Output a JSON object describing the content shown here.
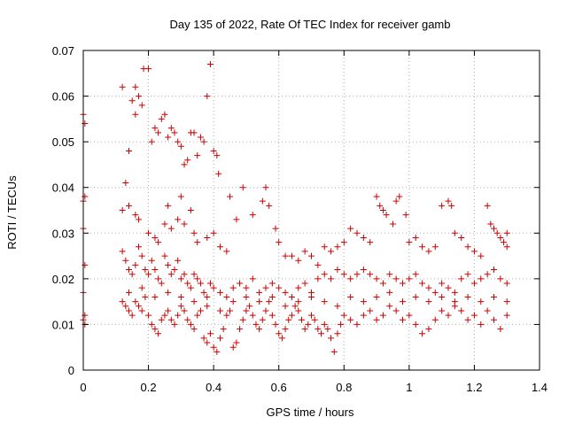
{
  "chart_data": {
    "type": "scatter",
    "title": "Day 135 of 2022, Rate Of TEC Index for receiver gamb",
    "xlabel": "GPS time / hours",
    "ylabel": "ROTI / TECUs",
    "xlim": [
      0,
      1.4
    ],
    "ylim": [
      0,
      0.07
    ],
    "x_ticks": [
      0,
      0.2,
      0.4,
      0.6,
      0.8,
      1,
      1.2,
      1.4
    ],
    "x_tick_labels": [
      "0",
      "0.2",
      "0.4",
      "0.6",
      "0.8",
      "1",
      "1.2",
      "1.4"
    ],
    "y_ticks": [
      0,
      0.01,
      0.02,
      0.03,
      0.04,
      0.05,
      0.06,
      0.07
    ],
    "y_tick_labels": [
      "0",
      "0.01",
      "0.02",
      "0.03",
      "0.04",
      "0.05",
      "0.06",
      "0.07"
    ],
    "grid": true,
    "marker": "+",
    "color": "#cc0000",
    "series": [
      {
        "name": "gamb",
        "points": [
          [
            0.0,
            0.056
          ],
          [
            0.005,
            0.054
          ],
          [
            0.0,
            0.037
          ],
          [
            0.005,
            0.038
          ],
          [
            0.0,
            0.031
          ],
          [
            0.005,
            0.023
          ],
          [
            0.0,
            0.017
          ],
          [
            0.005,
            0.012
          ],
          [
            0.0,
            0.011
          ],
          [
            0.005,
            0.01
          ],
          [
            0.12,
            0.062
          ],
          [
            0.13,
            0.041
          ],
          [
            0.14,
            0.048
          ],
          [
            0.15,
            0.059
          ],
          [
            0.16,
            0.056
          ],
          [
            0.16,
            0.062
          ],
          [
            0.17,
            0.06
          ],
          [
            0.18,
            0.058
          ],
          [
            0.185,
            0.066
          ],
          [
            0.2,
            0.066
          ],
          [
            0.21,
            0.05
          ],
          [
            0.22,
            0.053
          ],
          [
            0.23,
            0.052
          ],
          [
            0.24,
            0.055
          ],
          [
            0.25,
            0.056
          ],
          [
            0.26,
            0.051
          ],
          [
            0.27,
            0.053
          ],
          [
            0.28,
            0.052
          ],
          [
            0.29,
            0.05
          ],
          [
            0.3,
            0.049
          ],
          [
            0.31,
            0.045
          ],
          [
            0.32,
            0.046
          ],
          [
            0.33,
            0.052
          ],
          [
            0.34,
            0.052
          ],
          [
            0.35,
            0.047
          ],
          [
            0.36,
            0.051
          ],
          [
            0.37,
            0.05
          ],
          [
            0.38,
            0.06
          ],
          [
            0.39,
            0.067
          ],
          [
            0.4,
            0.048
          ],
          [
            0.41,
            0.047
          ],
          [
            0.415,
            0.043
          ],
          [
            0.3,
            0.038
          ],
          [
            0.26,
            0.036
          ],
          [
            0.33,
            0.035
          ],
          [
            0.12,
            0.035
          ],
          [
            0.14,
            0.036
          ],
          [
            0.16,
            0.034
          ],
          [
            0.17,
            0.033
          ],
          [
            0.2,
            0.03
          ],
          [
            0.22,
            0.029
          ],
          [
            0.23,
            0.028
          ],
          [
            0.25,
            0.032
          ],
          [
            0.27,
            0.031
          ],
          [
            0.29,
            0.033
          ],
          [
            0.31,
            0.032
          ],
          [
            0.34,
            0.03
          ],
          [
            0.35,
            0.028
          ],
          [
            0.38,
            0.029
          ],
          [
            0.4,
            0.03
          ],
          [
            0.42,
            0.027
          ],
          [
            0.44,
            0.026
          ],
          [
            0.45,
            0.038
          ],
          [
            0.47,
            0.033
          ],
          [
            0.49,
            0.04
          ],
          [
            0.52,
            0.034
          ],
          [
            0.55,
            0.037
          ],
          [
            0.56,
            0.04
          ],
          [
            0.57,
            0.036
          ],
          [
            0.59,
            0.031
          ],
          [
            0.6,
            0.028
          ],
          [
            0.62,
            0.025
          ],
          [
            0.64,
            0.025
          ],
          [
            0.66,
            0.024
          ],
          [
            0.68,
            0.026
          ],
          [
            0.7,
            0.025
          ],
          [
            0.72,
            0.023
          ],
          [
            0.74,
            0.027
          ],
          [
            0.76,
            0.026
          ],
          [
            0.78,
            0.027
          ],
          [
            0.8,
            0.028
          ],
          [
            0.82,
            0.031
          ],
          [
            0.84,
            0.03
          ],
          [
            0.86,
            0.029
          ],
          [
            0.88,
            0.028
          ],
          [
            0.9,
            0.038
          ],
          [
            0.91,
            0.036
          ],
          [
            0.92,
            0.035
          ],
          [
            0.93,
            0.034
          ],
          [
            0.95,
            0.032
          ],
          [
            0.96,
            0.037
          ],
          [
            0.97,
            0.038
          ],
          [
            0.99,
            0.034
          ],
          [
            1.0,
            0.028
          ],
          [
            1.02,
            0.029
          ],
          [
            1.04,
            0.027
          ],
          [
            1.06,
            0.026
          ],
          [
            1.08,
            0.027
          ],
          [
            1.1,
            0.036
          ],
          [
            1.12,
            0.037
          ],
          [
            1.13,
            0.036
          ],
          [
            1.14,
            0.03
          ],
          [
            1.16,
            0.029
          ],
          [
            1.18,
            0.027
          ],
          [
            1.2,
            0.026
          ],
          [
            1.22,
            0.025
          ],
          [
            1.24,
            0.036
          ],
          [
            1.25,
            0.032
          ],
          [
            1.26,
            0.031
          ],
          [
            1.27,
            0.03
          ],
          [
            1.28,
            0.029
          ],
          [
            1.29,
            0.028
          ],
          [
            1.3,
            0.027
          ],
          [
            1.3,
            0.03
          ],
          [
            0.12,
            0.026
          ],
          [
            0.13,
            0.024
          ],
          [
            0.14,
            0.022
          ],
          [
            0.15,
            0.021
          ],
          [
            0.16,
            0.023
          ],
          [
            0.17,
            0.027
          ],
          [
            0.18,
            0.025
          ],
          [
            0.19,
            0.022
          ],
          [
            0.2,
            0.021
          ],
          [
            0.21,
            0.024
          ],
          [
            0.22,
            0.022
          ],
          [
            0.23,
            0.02
          ],
          [
            0.24,
            0.019
          ],
          [
            0.25,
            0.025
          ],
          [
            0.26,
            0.023
          ],
          [
            0.27,
            0.021
          ],
          [
            0.28,
            0.022
          ],
          [
            0.29,
            0.024
          ],
          [
            0.3,
            0.02
          ],
          [
            0.31,
            0.021
          ],
          [
            0.32,
            0.019
          ],
          [
            0.33,
            0.018
          ],
          [
            0.34,
            0.021
          ],
          [
            0.35,
            0.02
          ],
          [
            0.36,
            0.019
          ],
          [
            0.37,
            0.017
          ],
          [
            0.38,
            0.016
          ],
          [
            0.39,
            0.019
          ],
          [
            0.4,
            0.018
          ],
          [
            0.42,
            0.017
          ],
          [
            0.44,
            0.016
          ],
          [
            0.46,
            0.018
          ],
          [
            0.48,
            0.019
          ],
          [
            0.5,
            0.018
          ],
          [
            0.52,
            0.02
          ],
          [
            0.54,
            0.017
          ],
          [
            0.56,
            0.018
          ],
          [
            0.58,
            0.019
          ],
          [
            0.6,
            0.018
          ],
          [
            0.62,
            0.017
          ],
          [
            0.64,
            0.016
          ],
          [
            0.66,
            0.018
          ],
          [
            0.68,
            0.019
          ],
          [
            0.7,
            0.017
          ],
          [
            0.72,
            0.02
          ],
          [
            0.74,
            0.021
          ],
          [
            0.76,
            0.02
          ],
          [
            0.78,
            0.022
          ],
          [
            0.8,
            0.021
          ],
          [
            0.82,
            0.02
          ],
          [
            0.84,
            0.021
          ],
          [
            0.86,
            0.022
          ],
          [
            0.88,
            0.021
          ],
          [
            0.9,
            0.02
          ],
          [
            0.92,
            0.019
          ],
          [
            0.94,
            0.021
          ],
          [
            0.96,
            0.02
          ],
          [
            0.98,
            0.019
          ],
          [
            1.0,
            0.02
          ],
          [
            1.02,
            0.021
          ],
          [
            1.04,
            0.019
          ],
          [
            1.06,
            0.018
          ],
          [
            1.08,
            0.017
          ],
          [
            1.1,
            0.019
          ],
          [
            1.12,
            0.018
          ],
          [
            1.14,
            0.017
          ],
          [
            1.16,
            0.02
          ],
          [
            1.18,
            0.021
          ],
          [
            1.2,
            0.019
          ],
          [
            1.22,
            0.02
          ],
          [
            1.24,
            0.021
          ],
          [
            1.26,
            0.022
          ],
          [
            1.28,
            0.02
          ],
          [
            1.3,
            0.019
          ],
          [
            0.12,
            0.015
          ],
          [
            0.13,
            0.014
          ],
          [
            0.14,
            0.013
          ],
          [
            0.15,
            0.012
          ],
          [
            0.16,
            0.015
          ],
          [
            0.17,
            0.014
          ],
          [
            0.18,
            0.013
          ],
          [
            0.19,
            0.016
          ],
          [
            0.2,
            0.012
          ],
          [
            0.21,
            0.01
          ],
          [
            0.22,
            0.009
          ],
          [
            0.23,
            0.008
          ],
          [
            0.24,
            0.011
          ],
          [
            0.25,
            0.012
          ],
          [
            0.26,
            0.013
          ],
          [
            0.27,
            0.011
          ],
          [
            0.28,
            0.01
          ],
          [
            0.29,
            0.012
          ],
          [
            0.3,
            0.014
          ],
          [
            0.31,
            0.013
          ],
          [
            0.32,
            0.011
          ],
          [
            0.33,
            0.01
          ],
          [
            0.34,
            0.009
          ],
          [
            0.35,
            0.012
          ],
          [
            0.36,
            0.013
          ],
          [
            0.37,
            0.007
          ],
          [
            0.38,
            0.006
          ],
          [
            0.39,
            0.008
          ],
          [
            0.4,
            0.005
          ],
          [
            0.41,
            0.004
          ],
          [
            0.42,
            0.007
          ],
          [
            0.43,
            0.009
          ],
          [
            0.44,
            0.012
          ],
          [
            0.45,
            0.013
          ],
          [
            0.46,
            0.005
          ],
          [
            0.47,
            0.006
          ],
          [
            0.48,
            0.009
          ],
          [
            0.49,
            0.011
          ],
          [
            0.5,
            0.013
          ],
          [
            0.51,
            0.014
          ],
          [
            0.52,
            0.012
          ],
          [
            0.53,
            0.01
          ],
          [
            0.54,
            0.009
          ],
          [
            0.55,
            0.011
          ],
          [
            0.56,
            0.013
          ],
          [
            0.57,
            0.015
          ],
          [
            0.58,
            0.012
          ],
          [
            0.59,
            0.01
          ],
          [
            0.6,
            0.008
          ],
          [
            0.61,
            0.007
          ],
          [
            0.62,
            0.009
          ],
          [
            0.63,
            0.011
          ],
          [
            0.64,
            0.012
          ],
          [
            0.65,
            0.014
          ],
          [
            0.66,
            0.013
          ],
          [
            0.67,
            0.011
          ],
          [
            0.68,
            0.009
          ],
          [
            0.69,
            0.01
          ],
          [
            0.7,
            0.012
          ],
          [
            0.71,
            0.011
          ],
          [
            0.72,
            0.009
          ],
          [
            0.73,
            0.008
          ],
          [
            0.74,
            0.01
          ],
          [
            0.75,
            0.009
          ],
          [
            0.76,
            0.007
          ],
          [
            0.77,
            0.004
          ],
          [
            0.78,
            0.008
          ],
          [
            0.79,
            0.01
          ],
          [
            0.8,
            0.012
          ],
          [
            0.82,
            0.011
          ],
          [
            0.84,
            0.01
          ],
          [
            0.86,
            0.012
          ],
          [
            0.88,
            0.013
          ],
          [
            0.9,
            0.011
          ],
          [
            0.92,
            0.012
          ],
          [
            0.94,
            0.014
          ],
          [
            0.96,
            0.013
          ],
          [
            0.98,
            0.011
          ],
          [
            1.0,
            0.012
          ],
          [
            1.02,
            0.01
          ],
          [
            1.04,
            0.008
          ],
          [
            1.06,
            0.009
          ],
          [
            1.08,
            0.011
          ],
          [
            1.1,
            0.013
          ],
          [
            1.12,
            0.012
          ],
          [
            1.14,
            0.014
          ],
          [
            1.16,
            0.013
          ],
          [
            1.18,
            0.011
          ],
          [
            1.2,
            0.012
          ],
          [
            1.22,
            0.01
          ],
          [
            1.24,
            0.013
          ],
          [
            1.26,
            0.011
          ],
          [
            1.28,
            0.009
          ],
          [
            1.3,
            0.012
          ],
          [
            0.14,
            0.017
          ],
          [
            0.18,
            0.018
          ],
          [
            0.22,
            0.016
          ],
          [
            0.26,
            0.017
          ],
          [
            0.3,
            0.016
          ],
          [
            0.34,
            0.015
          ],
          [
            0.38,
            0.014
          ],
          [
            0.42,
            0.013
          ],
          [
            0.46,
            0.015
          ],
          [
            0.5,
            0.016
          ],
          [
            0.54,
            0.015
          ],
          [
            0.58,
            0.016
          ],
          [
            0.62,
            0.014
          ],
          [
            0.66,
            0.015
          ],
          [
            0.7,
            0.016
          ],
          [
            0.74,
            0.015
          ],
          [
            0.78,
            0.014
          ],
          [
            0.82,
            0.016
          ],
          [
            0.86,
            0.015
          ],
          [
            0.9,
            0.016
          ],
          [
            0.94,
            0.017
          ],
          [
            0.98,
            0.015
          ],
          [
            1.02,
            0.016
          ],
          [
            1.06,
            0.015
          ],
          [
            1.1,
            0.016
          ],
          [
            1.14,
            0.015
          ],
          [
            1.18,
            0.016
          ],
          [
            1.22,
            0.015
          ],
          [
            1.26,
            0.016
          ],
          [
            1.3,
            0.015
          ]
        ]
      }
    ]
  }
}
